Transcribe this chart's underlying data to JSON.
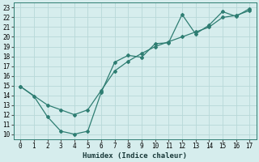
{
  "title": "",
  "xlabel": "Humidex (Indice chaleur)",
  "background_color": "#d6eded",
  "grid_color": "#b8d8d8",
  "line_color": "#2e7d72",
  "xlim": [
    -0.5,
    17.5
  ],
  "ylim": [
    9.5,
    23.5
  ],
  "xticks": [
    0,
    1,
    2,
    3,
    4,
    5,
    6,
    7,
    8,
    9,
    10,
    11,
    12,
    13,
    14,
    15,
    16,
    17
  ],
  "yticks": [
    10,
    11,
    12,
    13,
    14,
    15,
    16,
    17,
    18,
    19,
    20,
    21,
    22,
    23
  ],
  "series1_x": [
    0,
    1,
    2,
    3,
    4,
    5,
    6,
    7,
    8,
    9,
    10,
    11,
    12,
    13,
    14,
    15,
    16,
    17
  ],
  "series1_y": [
    14.9,
    13.9,
    11.8,
    10.3,
    10.0,
    10.3,
    14.3,
    17.4,
    18.1,
    17.9,
    19.3,
    19.4,
    22.3,
    20.3,
    21.2,
    22.6,
    22.1,
    22.9
  ],
  "series2_x": [
    0,
    2,
    3,
    4,
    5,
    6,
    7,
    8,
    9,
    10,
    11,
    12,
    13,
    14,
    15,
    16,
    17
  ],
  "series2_y": [
    14.9,
    13.0,
    12.5,
    12.0,
    12.5,
    14.5,
    16.5,
    17.5,
    18.3,
    19.0,
    19.5,
    20.0,
    20.5,
    21.0,
    22.0,
    22.2,
    22.7
  ]
}
